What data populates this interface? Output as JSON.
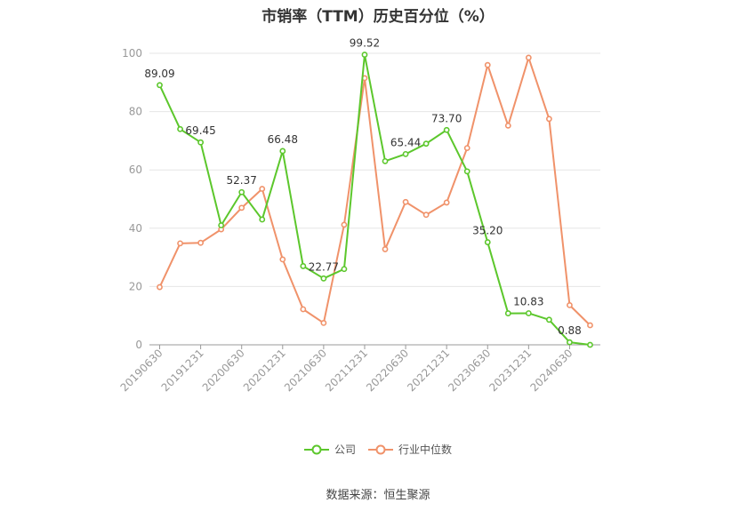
{
  "title": "市销率（TTM）历史百分位（%）",
  "source": "数据来源：恒生聚源",
  "colors": {
    "company": "#5cc72c",
    "industry": "#f0926a",
    "grid": "#e6e6e6",
    "axis": "#999999",
    "tick_text": "#999999",
    "label_text": "#333333"
  },
  "chart_data": {
    "type": "line",
    "title": "市销率（TTM）历史百分位（%）",
    "xlabel": "",
    "ylabel": "",
    "ylim": [
      0,
      100
    ],
    "yticks": [
      "0",
      "20",
      "40",
      "60",
      "80",
      "100"
    ],
    "grid": true,
    "legend_position": "bottom",
    "categories": [
      "20190630",
      "20190930",
      "20191231",
      "20200331",
      "20200630",
      "20200930",
      "20201231",
      "20210331",
      "20210630",
      "20210930",
      "20211231",
      "20220331",
      "20220630",
      "20220930",
      "20221231",
      "20230331",
      "20230630",
      "20230930",
      "20231231",
      "20240331",
      "20240630",
      "20240930"
    ],
    "tick_labels": [
      "20190630",
      "20191231",
      "20200630",
      "20201231",
      "20210630",
      "20211231",
      "20220630",
      "20221231",
      "20230630",
      "20231231",
      "20240630"
    ],
    "series": [
      {
        "name": "公司",
        "values": [
          89.09,
          74.0,
          69.45,
          41.0,
          52.37,
          43.0,
          66.48,
          27.0,
          22.77,
          26.0,
          99.52,
          63.0,
          65.44,
          69.0,
          73.7,
          59.5,
          35.2,
          10.8,
          10.83,
          8.6,
          0.88,
          0.0
        ]
      },
      {
        "name": "行业中位数",
        "values": [
          19.8,
          34.8,
          35.0,
          39.6,
          47.0,
          53.5,
          29.3,
          12.2,
          7.5,
          41.2,
          91.5,
          32.8,
          49.0,
          44.6,
          48.8,
          67.5,
          96.0,
          75.2,
          98.5,
          77.5,
          13.6,
          6.7
        ]
      }
    ],
    "data_labels": [
      {
        "series": 0,
        "index": 0,
        "text": "89.09"
      },
      {
        "series": 0,
        "index": 2,
        "text": "69.45"
      },
      {
        "series": 0,
        "index": 4,
        "text": "52.37"
      },
      {
        "series": 0,
        "index": 6,
        "text": "66.48"
      },
      {
        "series": 0,
        "index": 8,
        "text": "22.77"
      },
      {
        "series": 0,
        "index": 10,
        "text": "99.52"
      },
      {
        "series": 0,
        "index": 12,
        "text": "65.44"
      },
      {
        "series": 0,
        "index": 14,
        "text": "73.70"
      },
      {
        "series": 0,
        "index": 16,
        "text": "35.20"
      },
      {
        "series": 0,
        "index": 18,
        "text": "10.83"
      },
      {
        "series": 0,
        "index": 20,
        "text": "0.88"
      }
    ]
  }
}
